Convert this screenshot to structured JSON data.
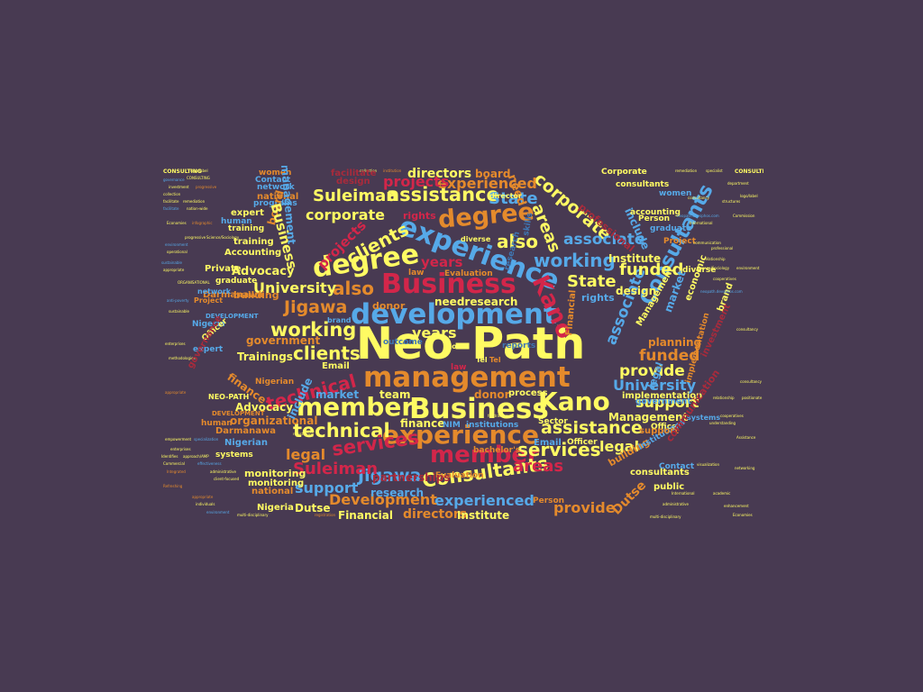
{
  "colors": {
    "background": "#483a52",
    "yellow": "#fffb63",
    "orange": "#e48a2c",
    "blue": "#56a9e8",
    "red": "#d3264a",
    "dark_red": "#a82b3c",
    "dark_blue": "#3f77b3"
  },
  "words": {
    "neo_path": "Neo-Path",
    "development": "development",
    "management": "management",
    "experience": "experience",
    "business": "Business",
    "kano": "Kano",
    "degree": "degree",
    "member": "member",
    "consultants": "Consultants",
    "technical": "technical",
    "clients": "clients",
    "working": "working",
    "assistance": "assistance",
    "services": "services",
    "jigawa": "Jigawa",
    "state": "State",
    "suleiman": "Suleiman",
    "corporate": "corporate",
    "also": "also",
    "areas": "areas",
    "associate": "associate",
    "funded": "funded",
    "university": "University",
    "legal": "legal",
    "support": "support",
    "provide": "provide",
    "experienced": "experienced",
    "projects": "projects",
    "years": "years",
    "directors": "directors",
    "development_cap": "Development",
    "research": "research",
    "advocacy": "Advocacy",
    "trainings": "Trainings",
    "institute": "Institute",
    "management_cap": "Management",
    "financial": "Financial",
    "dutse": "Dutse",
    "design": "design",
    "government": "government",
    "organizational": "organizational",
    "finance": "finance",
    "market": "market",
    "team": "team",
    "donor": "donor",
    "process": "process",
    "implementation": "implementation",
    "needresearch": "needresearch",
    "email": "Email",
    "nim": "NIM",
    "institutions": "institutions",
    "sector": "Sector",
    "consultants_lc": "consultants",
    "public": "public",
    "monitoring": "monitoring",
    "national": "national",
    "nigeria": "Nigeria",
    "nigerian": "Nigerian",
    "expert": "expert",
    "darmanawa": "Darmanawa",
    "private": "Private",
    "graduate": "graduate",
    "accounting": "Accounting",
    "training": "training",
    "human": "human",
    "network": "network",
    "contact": "Contact",
    "programs": "programs",
    "women": "women",
    "board": "board",
    "need": "need",
    "skills": "skills",
    "include": "include",
    "person": "Person",
    "corporate_cap": "Corporate",
    "accounting_lc": "accounting",
    "project": "Project",
    "planning": "planning",
    "office": "Office",
    "systems": "systems",
    "officer": "Officer",
    "rights": "rights",
    "law": "law",
    "evaluation": "Evaluation",
    "road": "Road",
    "tel": "Tel",
    "neo_path_caps": "NEO-PATH",
    "consulting": "CONSULTING",
    "economic": "economic",
    "brand": "brand",
    "building": "building",
    "diverse": "diverse",
    "director": "director",
    "bachelors": "bachelor's",
    "specialist": "specialist",
    "remediation": "remediation",
    "logo_label": "logo/label",
    "consultancy": "consultancy",
    "website": "neopath.devsphos.com",
    "commission": "Commission",
    "professional": "professional",
    "relationship": "relationship",
    "environment": "environment",
    "cooperatives": "cooperatives",
    "assistance_cap": "Assistance",
    "economies": "Economies",
    "international": "International",
    "networking": "networking",
    "social": "social",
    "department": "department",
    "collection": "collection",
    "institution": "institution",
    "fundraising": "fundraising",
    "facilitate": "facilitate",
    "enterprises": "enterprises",
    "empowerment": "empowerment",
    "specialization": "specialization",
    "partnerships": "partnerships",
    "identifies": "Identifies",
    "approach": "approach/AMP",
    "integrated": "Integrated",
    "refreshing": "Refreshing",
    "appropriate": "appropriate",
    "individuals": "individuals",
    "multi_disciplinary": "multi-disciplinary",
    "registration": "registration",
    "client_focused": "client-focused",
    "administrative": "administrative",
    "reports": "reports",
    "nation_wide": "nation-wide",
    "infographic": "infographic",
    "progressive": "progressive",
    "outcome": "outcome",
    "investment": "investment",
    "governance": "governance",
    "operational": "operational",
    "sustainable": "sustainable",
    "commercial": "Commercial",
    "methodologies": "methodologies",
    "effectiveness": "effectiveness",
    "science_sociology": "Science/Sociology",
    "anti_poverty": "anti-poverty",
    "organisational": "ORGANISATIONAL",
    "development_caps": "DEVELOPMENT",
    "structures": "structures",
    "understanding": "understanding",
    "visualization": "visualization",
    "positionate": "positionate",
    "academic": "academic",
    "enhancement": "enhancement",
    "communication": "communication"
  }
}
